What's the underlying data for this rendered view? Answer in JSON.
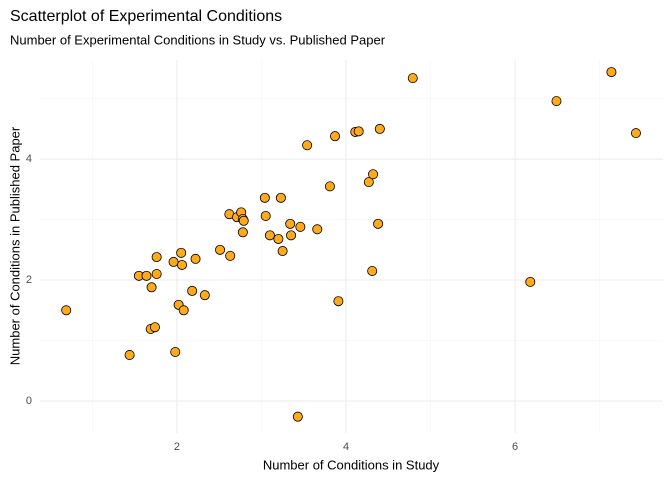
{
  "chart_data": {
    "type": "scatter",
    "title": "Scatterplot of Experimental Conditions",
    "subtitle": "Number of Experimental Conditions in Study vs. Published Paper",
    "x_label": "Number of Conditions in Study",
    "y_label": "Number of Conditions in Published Paper",
    "color": "#ffa91c",
    "grid": true,
    "xlim": [
      0.38,
      7.75
    ],
    "ylim": [
      -0.53,
      5.64
    ],
    "xticks": [
      2,
      4,
      6
    ],
    "yticks": [
      0,
      2,
      4
    ],
    "x": [
      0.69,
      1.44,
      1.55,
      1.64,
      1.7,
      1.69,
      1.74,
      1.76,
      1.76,
      1.96,
      1.98,
      2.02,
      2.05,
      2.06,
      2.08,
      2.18,
      2.22,
      2.33,
      2.51,
      2.62,
      2.63,
      2.71,
      2.76,
      2.78,
      2.79,
      2.78,
      3.04,
      3.05,
      3.1,
      3.2,
      3.23,
      3.25,
      3.34,
      3.35,
      3.46,
      3.43,
      3.54,
      3.66,
      3.81,
      3.87,
      3.91,
      4.11,
      4.15,
      4.27,
      4.32,
      4.31,
      4.38,
      4.4,
      4.79,
      6.18,
      6.49,
      7.14,
      7.43
    ],
    "values": [
      1.5,
      0.76,
      2.07,
      2.07,
      1.88,
      1.19,
      1.22,
      2.38,
      2.1,
      2.3,
      0.81,
      1.59,
      2.45,
      2.25,
      1.5,
      1.82,
      2.35,
      1.75,
      2.5,
      3.09,
      2.4,
      3.04,
      3.12,
      3.01,
      2.98,
      2.79,
      3.36,
      3.06,
      2.74,
      2.68,
      3.36,
      2.48,
      2.93,
      2.74,
      2.88,
      -0.26,
      4.23,
      2.84,
      3.55,
      4.38,
      1.65,
      4.45,
      4.46,
      3.62,
      3.75,
      2.15,
      2.93,
      4.5,
      5.34,
      1.97,
      4.96,
      5.44,
      4.43
    ]
  }
}
